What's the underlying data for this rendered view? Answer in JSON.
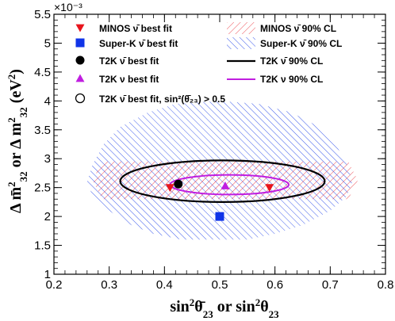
{
  "chart_data": {
    "type": "scatter",
    "xlabel": "sin²θ̄₂₃ or sin²θ₂₃",
    "ylabel": "Δ m̄²₃₂ or Δ m²₃₂ (eV²)",
    "ylabel_parts": {
      "left": "Δ m̄",
      "sup1": "2",
      "sub1": "32",
      "mid": " or Δ m",
      "sup2": "2",
      "sub2": "32",
      "right": " (eV",
      "sup3": "2",
      "end": ")"
    },
    "xlabel_parts": {
      "a": "sin",
      "sup1": "2",
      "b": "θ̄",
      "sub1": "23",
      "c": " or sin",
      "sup2": "2",
      "d": "θ",
      "sub2": "23"
    },
    "y_multiplier": "×10⁻³",
    "xlim": [
      0.2,
      0.8
    ],
    "ylim": [
      1.0,
      5.5
    ],
    "x_ticks": [
      "0.2",
      "0.3",
      "0.4",
      "0.5",
      "0.6",
      "0.7",
      "0.8"
    ],
    "y_ticks": [
      "1",
      "1.5",
      "2",
      "2.5",
      "3",
      "3.5",
      "4",
      "4.5",
      "5",
      "5.5"
    ],
    "grid": false,
    "legend": {
      "placement": "top",
      "left": [
        {
          "label": "MINOS  ν̄ best fit",
          "marker": "triangle-down",
          "color": "#e8141c"
        },
        {
          "label": "Super-K  ν̄ best fit",
          "marker": "square",
          "color": "#1034e8"
        },
        {
          "label": "T2K  ν̄ best fit",
          "marker": "circle",
          "color": "#000000"
        },
        {
          "label": "T2K  ν best fit",
          "marker": "triangle-up",
          "color": "#c01ee0"
        },
        {
          "label": "T2K  ν̄ best fit, sin²(θ̄₂₃) > 0.5",
          "marker": "open-circle",
          "color": "#000000"
        }
      ],
      "right": [
        {
          "label": "MINOS  ν̄ 90% CL",
          "style": "hatch-red"
        },
        {
          "label": "Super-K  ν̄ 90% CL",
          "style": "hatch-blue"
        },
        {
          "label": "T2K  ν̄ 90% CL",
          "style": "line-black"
        },
        {
          "label": "T2K  ν 90% CL",
          "style": "line-magenta"
        }
      ]
    },
    "points": [
      {
        "name": "MINOS ν̄ best fit",
        "marker": "triangle-down",
        "color": "#e8141c",
        "x": 0.41,
        "y": 2.5
      },
      {
        "name": "MINOS ν̄ best fit",
        "marker": "triangle-down",
        "color": "#e8141c",
        "x": 0.59,
        "y": 2.5
      },
      {
        "name": "Super-K ν̄ best fit",
        "marker": "square",
        "color": "#1034e8",
        "x": 0.5,
        "y": 2.0
      },
      {
        "name": "T2K ν̄ best fit",
        "marker": "circle",
        "color": "#000000",
        "x": 0.425,
        "y": 2.56
      },
      {
        "name": "T2K ν best fit",
        "marker": "triangle-up",
        "color": "#c01ee0",
        "x": 0.51,
        "y": 2.53
      }
    ],
    "contours": {
      "minos_red_hatch": {
        "color": "#e8141c",
        "x": [
          0.27,
          0.75
        ],
        "y": [
          2.3,
          2.95
        ]
      },
      "superk_blue_hatch": {
        "color": "#1034e8",
        "outline": [
          [
            0.43,
            1.6
          ],
          [
            0.55,
            1.6
          ],
          [
            0.6,
            1.7
          ],
          [
            0.65,
            1.85
          ],
          [
            0.7,
            2.1
          ],
          [
            0.73,
            2.35
          ],
          [
            0.74,
            2.6
          ],
          [
            0.73,
            2.9
          ],
          [
            0.71,
            3.25
          ],
          [
            0.68,
            3.55
          ],
          [
            0.63,
            3.8
          ],
          [
            0.57,
            3.95
          ],
          [
            0.5,
            4.0
          ],
          [
            0.42,
            3.95
          ],
          [
            0.37,
            3.8
          ],
          [
            0.32,
            3.55
          ],
          [
            0.29,
            3.25
          ],
          [
            0.27,
            2.9
          ],
          [
            0.26,
            2.6
          ],
          [
            0.27,
            2.35
          ],
          [
            0.3,
            2.1
          ],
          [
            0.34,
            1.85
          ],
          [
            0.38,
            1.7
          ]
        ]
      },
      "t2k_antinu_black": {
        "color": "#000000",
        "x": [
          0.32,
          0.69
        ],
        "y": [
          2.25,
          2.97
        ]
      },
      "t2k_nu_magenta": {
        "color": "#c01ee0",
        "x": [
          0.41,
          0.625
        ],
        "y": [
          2.38,
          2.72
        ]
      }
    }
  }
}
